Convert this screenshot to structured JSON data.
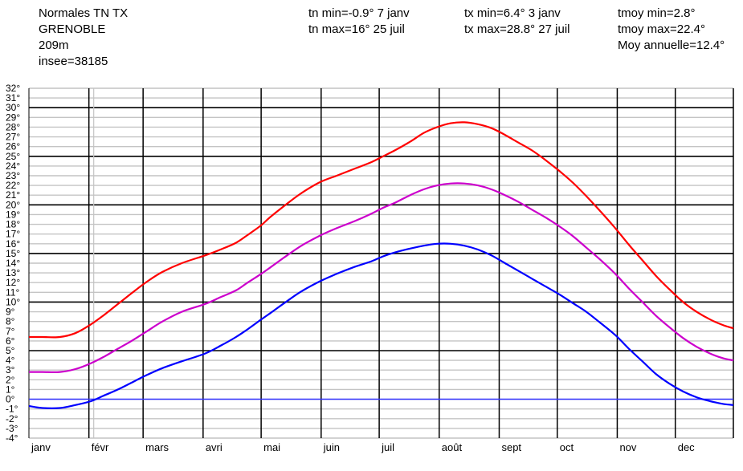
{
  "header": {
    "title": "Normales TN TX",
    "station": "GRENOBLE",
    "altitude": "209m",
    "insee": "insee=38185",
    "tn_min": "tn min=-0.9° 7 janv",
    "tn_max": "tn max=16° 25 juil",
    "tx_min": "tx min=6.4° 3 janv",
    "tx_max": "tx max=28.8° 27 juil",
    "tmoy_min": "tmoy min=2.8°",
    "tmoy_max": "tmoy max=22.4°",
    "moy_annuelle": "Moy annuelle=12.4°"
  },
  "chart_data": {
    "type": "line",
    "x_unit": "day of year",
    "xlim": [
      1,
      365
    ],
    "ylim": [
      -4,
      32
    ],
    "y_ticks": [
      -4,
      -3,
      -2,
      -1,
      0,
      1,
      2,
      3,
      4,
      5,
      6,
      7,
      8,
      9,
      10,
      11,
      12,
      13,
      14,
      15,
      16,
      17,
      18,
      19,
      20,
      21,
      22,
      23,
      24,
      25,
      26,
      27,
      28,
      29,
      30,
      31,
      32
    ],
    "y_tick_labels": [
      "-4°",
      "-3°",
      "-2°",
      "-1°",
      "0°",
      "1°",
      "2°",
      "3°",
      "4°",
      "5°",
      "6°",
      "7°",
      "8°",
      "9°",
      "10°",
      "11°",
      "12°",
      "13°",
      "14°",
      "15°",
      "16°",
      "17°",
      "18°",
      "19°",
      "20°",
      "21°",
      "22°",
      "23°",
      "24°",
      "25°",
      "26°",
      "27°",
      "28°",
      "29°",
      "30°",
      "31°",
      "32°"
    ],
    "months": [
      {
        "label": "janv",
        "day": 1
      },
      {
        "label": "févr",
        "day": 32
      },
      {
        "label": "mars",
        "day": 60
      },
      {
        "label": "avri",
        "day": 91
      },
      {
        "label": "mai",
        "day": 121
      },
      {
        "label": "juin",
        "day": 152
      },
      {
        "label": "juil",
        "day": 182
      },
      {
        "label": "août",
        "day": 213
      },
      {
        "label": "sept",
        "day": 244
      },
      {
        "label": "oct",
        "day": 274
      },
      {
        "label": "nov",
        "day": 305
      },
      {
        "label": "dec",
        "day": 335
      }
    ],
    "reference_line": {
      "y": 0,
      "color": "#3333ff"
    },
    "grid": true,
    "series": [
      {
        "color": "#ff0000",
        "x": [
          1,
          8,
          17,
          25,
          33,
          40,
          47,
          54,
          62,
          70,
          80,
          92,
          100,
          108,
          114,
          121,
          126,
          133,
          141,
          151,
          160,
          169,
          178,
          184,
          190,
          198,
          205,
          212,
          219,
          226,
          233,
          240,
          247,
          254,
          261,
          268,
          275,
          282,
          289,
          296,
          304,
          311,
          318,
          325,
          332,
          339,
          346,
          353,
          360,
          365
        ],
        "y": [
          6.4,
          6.4,
          6.4,
          6.8,
          7.7,
          8.7,
          9.8,
          10.9,
          12.1,
          13.1,
          14.0,
          14.8,
          15.4,
          16.1,
          16.9,
          17.9,
          18.8,
          19.9,
          21.1,
          22.3,
          23.0,
          23.7,
          24.4,
          25.0,
          25.6,
          26.5,
          27.4,
          28.0,
          28.4,
          28.5,
          28.3,
          27.9,
          27.2,
          26.4,
          25.6,
          24.6,
          23.5,
          22.3,
          20.9,
          19.4,
          17.6,
          15.9,
          14.3,
          12.7,
          11.3,
          10.0,
          9.0,
          8.2,
          7.6,
          7.3
        ]
      },
      {
        "color": "#cc00cc",
        "x": [
          1,
          8,
          17,
          25,
          33,
          40,
          47,
          54,
          62,
          70,
          80,
          92,
          100,
          108,
          114,
          121,
          126,
          133,
          141,
          151,
          160,
          169,
          178,
          184,
          190,
          198,
          205,
          212,
          219,
          226,
          233,
          240,
          247,
          254,
          261,
          268,
          275,
          282,
          289,
          296,
          304,
          311,
          318,
          325,
          332,
          339,
          346,
          353,
          360,
          365
        ],
        "y": [
          2.8,
          2.8,
          2.8,
          3.1,
          3.7,
          4.4,
          5.2,
          6.0,
          7.0,
          8.0,
          9.0,
          9.8,
          10.5,
          11.2,
          12.0,
          12.9,
          13.6,
          14.6,
          15.7,
          16.8,
          17.6,
          18.3,
          19.1,
          19.7,
          20.2,
          21.0,
          21.6,
          22.0,
          22.2,
          22.2,
          22.0,
          21.6,
          21.0,
          20.3,
          19.5,
          18.7,
          17.8,
          16.8,
          15.6,
          14.4,
          12.9,
          11.4,
          10.0,
          8.6,
          7.4,
          6.3,
          5.4,
          4.7,
          4.2,
          4.0
        ]
      },
      {
        "color": "#0000ff",
        "x": [
          1,
          8,
          17,
          25,
          33,
          40,
          47,
          54,
          62,
          70,
          80,
          92,
          100,
          108,
          114,
          121,
          126,
          133,
          141,
          151,
          160,
          169,
          178,
          184,
          190,
          198,
          205,
          212,
          219,
          226,
          233,
          240,
          247,
          254,
          261,
          268,
          275,
          282,
          289,
          296,
          304,
          311,
          318,
          325,
          332,
          339,
          346,
          353,
          360,
          365
        ],
        "y": [
          -0.7,
          -0.9,
          -0.9,
          -0.6,
          -0.2,
          0.4,
          1.0,
          1.7,
          2.5,
          3.2,
          3.9,
          4.7,
          5.5,
          6.4,
          7.2,
          8.2,
          8.9,
          9.9,
          11.0,
          12.1,
          12.9,
          13.6,
          14.2,
          14.7,
          15.1,
          15.5,
          15.8,
          16.0,
          16.0,
          15.8,
          15.4,
          14.8,
          14.0,
          13.2,
          12.4,
          11.6,
          10.8,
          9.9,
          9.0,
          7.9,
          6.6,
          5.2,
          3.9,
          2.6,
          1.6,
          0.8,
          0.2,
          -0.2,
          -0.5,
          -0.6
        ]
      }
    ]
  }
}
